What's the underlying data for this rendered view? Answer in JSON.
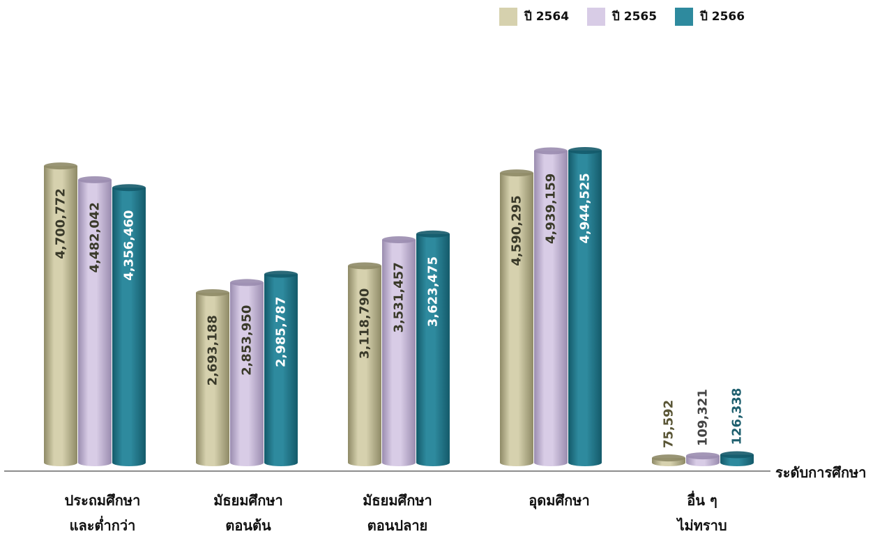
{
  "chart_data": {
    "type": "bar",
    "style": "3d-cylinder",
    "xlabel": "ระดับการศึกษา",
    "categories": [
      "ประถมศึกษา\nและต่ำกว่า",
      "มัธยมศึกษา\nตอนต้น",
      "มัธยมศึกษา\nตอนปลาย",
      "อุดมศึกษา",
      "อื่น ๆ\nไม่ทราบ"
    ],
    "series": [
      {
        "name": "ปี 2564",
        "color": "#d6d1ae",
        "dark": "#8e8a66",
        "values": [
          4700772,
          2693188,
          3118790,
          4590295,
          75592
        ]
      },
      {
        "name": "ปี 2565",
        "color": "#d8cce6",
        "dark": "#9a8caf",
        "values": [
          4482042,
          2853950,
          3531457,
          4939159,
          109321
        ]
      },
      {
        "name": "ปี 2566",
        "color": "#2e8a9e",
        "dark": "#145a6a",
        "values": [
          4356460,
          2985787,
          3623475,
          4944525,
          126338
        ]
      }
    ],
    "labels": [
      [
        "4,700,772",
        "2,693,188",
        "3,118,790",
        "4,590,295",
        "75,592"
      ],
      [
        "4,482,042",
        "2,853,950",
        "3,531,457",
        "4,939,159",
        "109,321"
      ],
      [
        "4,356,460",
        "2,985,787",
        "3,623,475",
        "4,944,525",
        "126,338"
      ]
    ],
    "legend": "top-right",
    "grid": false
  }
}
